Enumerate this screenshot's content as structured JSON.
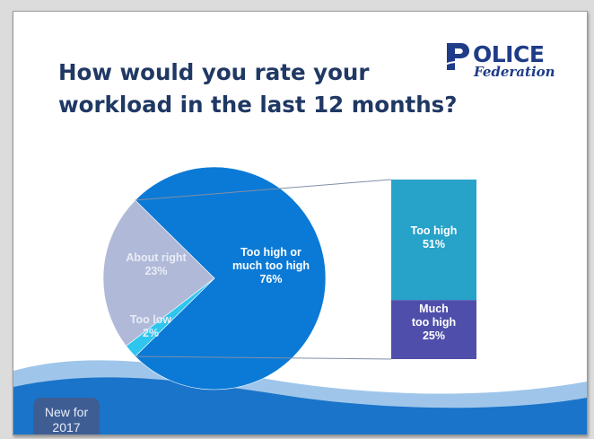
{
  "slide": {
    "title_lines": [
      "How would you rate your",
      "workload in the last 12 months?"
    ],
    "badge_lines": [
      "New for",
      "2017"
    ]
  },
  "logo": {
    "word": "OLICE",
    "initial": "P",
    "subtitle": "Federation"
  },
  "colors": {
    "title": "#1f3864",
    "pie_main": "#0b7ad6",
    "pie_about_right": "#b0bad8",
    "pie_too_low": "#2ec6ef",
    "bar_too_high": "#27a2c9",
    "bar_much_too_high": "#4f4fab",
    "label_muted": "#e9ecf6",
    "footer_wave": "#1a74c9",
    "badge": "#3d5d93"
  },
  "chart_data": {
    "type": "pie",
    "subtype": "pie-of-bar",
    "title": "How would you rate your workload in the last 12 months?",
    "slices": [
      {
        "label": "Too high or much too high",
        "value": 76,
        "display": "76%"
      },
      {
        "label": "About right",
        "value": 23,
        "display": "23%"
      },
      {
        "label": "Too low",
        "value": 2,
        "display": "2%"
      }
    ],
    "breakdown": {
      "of": "Too high or much too high",
      "segments": [
        {
          "label": "Too high",
          "value": 51,
          "display": "51%"
        },
        {
          "label": "Much too high",
          "value": 25,
          "display": "25%"
        }
      ]
    },
    "label_lines": {
      "too_high_or_much": [
        "Too high or",
        "much too high",
        "76%"
      ],
      "about_right": [
        "About right",
        "23%"
      ],
      "too_low": [
        "Too low",
        "2%"
      ],
      "too_high": [
        "Too high",
        "51%"
      ],
      "much_too_high": [
        "Much",
        "too high",
        "25%"
      ]
    },
    "legend": "none"
  }
}
